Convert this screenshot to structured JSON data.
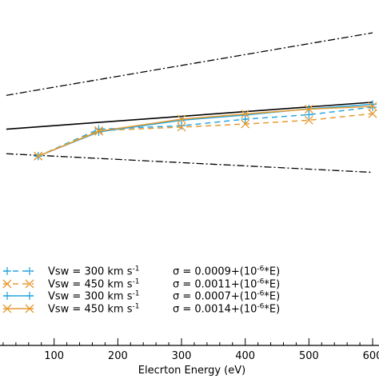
{
  "chart_data": {
    "type": "line",
    "title": "",
    "xlabel": "Elecrton Energy (eV)",
    "ylabel": "",
    "xlim": [
      0,
      610
    ],
    "ylim": [
      0,
      1
    ],
    "xticks": [
      100,
      200,
      300,
      400,
      500,
      600
    ],
    "xtick_labels": [
      "100",
      "200",
      "300",
      "400",
      "500",
      "600"
    ],
    "x": [
      75,
      170,
      300,
      400,
      500,
      600
    ],
    "series": [
      {
        "name": "Vsw = 300 km s-1   σ = 0.0009+(10-6*E)",
        "label_text": "Vsw = 300 km s",
        "sigma_text": "σ = 0.0009+(10",
        "color": "#29a6de",
        "marker": "plus",
        "dash": "dashed",
        "values": [
          0.548,
          0.626,
          0.636,
          0.655,
          0.668,
          0.69
        ]
      },
      {
        "name": "Vsw = 450 km s-1   σ = 0.0011+(10-6*E)",
        "label_text": "Vsw = 450 km s",
        "sigma_text": "σ = 0.0011+(10",
        "color": "#e69a2e",
        "marker": "x",
        "dash": "dashed",
        "values": [
          0.548,
          0.622,
          0.632,
          0.641,
          0.652,
          0.671
        ]
      },
      {
        "name": "Vsw = 300 km s-1   σ = 0.0007+(10-6*E)",
        "label_text": "Vsw = 300 km s",
        "sigma_text": "σ = 0.0007+(10",
        "color": "#29a6de",
        "marker": "plus",
        "dash": "solid",
        "values": [
          0.548,
          0.618,
          0.652,
          0.667,
          0.685,
          0.698
        ]
      },
      {
        "name": "Vsw = 450 km s-1   σ = 0.0014+(10-6*E)",
        "label_text": "Vsw = 450 km s",
        "sigma_text": "σ = 0.0014+(10",
        "color": "#e69a2e",
        "marker": "x",
        "dash": "solid",
        "values": [
          0.548,
          0.62,
          0.655,
          0.67,
          0.684,
          0.692
        ]
      }
    ],
    "reference_lines": [
      {
        "style": "solid",
        "color": "#000000",
        "x": [
          25,
          600
        ],
        "values": [
          0.626,
          0.704
        ]
      },
      {
        "style": "dashdot",
        "color": "#000000",
        "x": [
          25,
          600
        ],
        "values": [
          0.724,
          0.905
        ]
      },
      {
        "style": "dashdot",
        "color": "#000000",
        "x": [
          25,
          600
        ],
        "values": [
          0.555,
          0.501
        ]
      }
    ],
    "legend": {
      "placement": "bottom-left",
      "unit_superscript": "-1",
      "exp_superscript": "-6",
      "suffix": "*E)"
    },
    "grid": false
  }
}
